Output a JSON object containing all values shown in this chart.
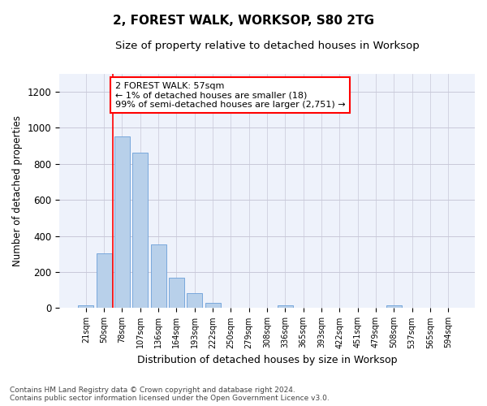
{
  "title": "2, FOREST WALK, WORKSOP, S80 2TG",
  "subtitle": "Size of property relative to detached houses in Worksop",
  "xlabel": "Distribution of detached houses by size in Worksop",
  "ylabel": "Number of detached properties",
  "bar_color": "#b8d0ea",
  "bar_edge_color": "#6a9fd8",
  "background_color": "#eef2fb",
  "grid_color": "#c8c8d8",
  "categories": [
    "21sqm",
    "50sqm",
    "78sqm",
    "107sqm",
    "136sqm",
    "164sqm",
    "193sqm",
    "222sqm",
    "250sqm",
    "279sqm",
    "308sqm",
    "336sqm",
    "365sqm",
    "393sqm",
    "422sqm",
    "451sqm",
    "479sqm",
    "508sqm",
    "537sqm",
    "565sqm",
    "594sqm"
  ],
  "values": [
    15,
    305,
    950,
    860,
    355,
    170,
    85,
    30,
    0,
    0,
    0,
    15,
    0,
    0,
    0,
    0,
    0,
    15,
    0,
    0,
    0
  ],
  "ylim": [
    0,
    1300
  ],
  "yticks": [
    0,
    200,
    400,
    600,
    800,
    1000,
    1200
  ],
  "annotation_text": "2 FOREST WALK: 57sqm\n← 1% of detached houses are smaller (18)\n99% of semi-detached houses are larger (2,751) →",
  "vline_x": 1.5,
  "footer_line1": "Contains HM Land Registry data © Crown copyright and database right 2024.",
  "footer_line2": "Contains public sector information licensed under the Open Government Licence v3.0."
}
